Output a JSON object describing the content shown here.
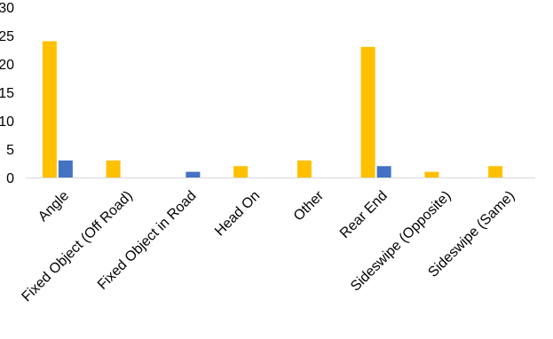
{
  "chart_data": {
    "type": "bar",
    "title": "",
    "xlabel": "",
    "ylabel": "",
    "ylim": [
      0,
      30
    ],
    "yticks": [
      0,
      5,
      10,
      15,
      20,
      25,
      30
    ],
    "grid": false,
    "legend": "none",
    "categories": [
      "Angle",
      "Fixed Object (Off Road)",
      "Fixed Object in Road",
      "Head On",
      "Other",
      "Rear End",
      "Sideswipe (Opposite)",
      "Sideswipe (Same)"
    ],
    "series": [
      {
        "color": "#FFC000",
        "values": [
          24,
          3,
          0,
          2,
          3,
          23,
          1,
          2
        ]
      },
      {
        "color": "#4472C4",
        "values": [
          3,
          0,
          1,
          0,
          0,
          2,
          0,
          0
        ]
      }
    ]
  }
}
